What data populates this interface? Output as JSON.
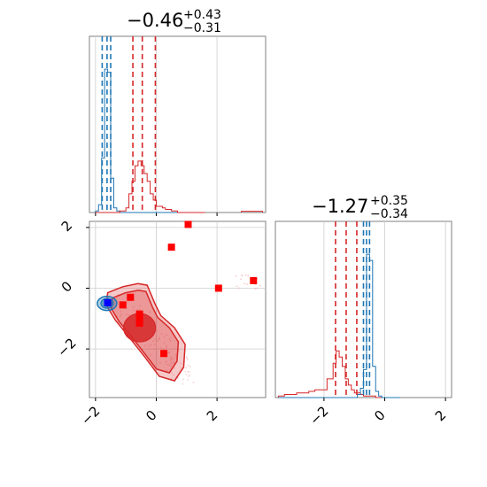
{
  "chart_data": {
    "type": "corner",
    "colors": {
      "blue": "#1f77b4",
      "red": "#d62728",
      "marker_blue": "#0000ff",
      "marker_red": "#ff0000",
      "grid": "#cccccc",
      "frame": "#808080"
    },
    "axis_range_p0": [
      -2.2,
      3.6
    ],
    "axis_range_p1": [
      -3.6,
      2.2
    ],
    "titles": [
      {
        "value": "−0.46",
        "upper": "+0.43",
        "lower": "−0.31"
      },
      {
        "value": "−1.27",
        "upper": "+0.35",
        "lower": "−0.34"
      }
    ],
    "ticks_p0": [
      -2,
      0,
      2
    ],
    "ticks_p0_labels": [
      "−2",
      "0",
      "2"
    ],
    "ticks_p1": [
      -2,
      0,
      2
    ],
    "ticks_p1_labels": [
      "−2",
      "0",
      "2"
    ],
    "histogram_p0": {
      "bin_edges": [
        -2.0,
        -1.9,
        -1.8,
        -1.7,
        -1.6,
        -1.5,
        -1.4,
        -1.3,
        -1.2,
        -1.1,
        -1.0,
        -0.9,
        -0.8,
        -0.7,
        -0.6,
        -0.5,
        -0.4,
        -0.3,
        -0.2,
        -0.1,
        0.0,
        0.1,
        0.2,
        0.3,
        0.4,
        0.5,
        0.6,
        0.7,
        0.8,
        0.9,
        1.0,
        1.1,
        1.2,
        1.3,
        1.4,
        1.5,
        1.6
      ],
      "blue": [
        0.01,
        0.05,
        0.35,
        0.92,
        0.9,
        0.22,
        0.03,
        0.01,
        0,
        0,
        0,
        0,
        0,
        0,
        0,
        0,
        0,
        0,
        0,
        0,
        0,
        0,
        0,
        0,
        0,
        0,
        0,
        0,
        0,
        0,
        0,
        0,
        0,
        0,
        0,
        0
      ],
      "red": [
        0,
        0,
        0,
        0,
        0,
        0,
        0,
        0,
        0.01,
        0.01,
        0.03,
        0.12,
        0.2,
        0.3,
        0.33,
        0.3,
        0.25,
        0.2,
        0.12,
        0.08,
        0.04,
        0.04,
        0.03,
        0.02,
        0.02,
        0.01,
        0.01,
        0,
        0,
        0,
        0,
        0,
        0,
        0,
        0,
        0
      ],
      "blue_quantiles": [
        -1.78,
        -1.62,
        -1.5
      ],
      "red_quantiles": [
        -0.77,
        -0.46,
        -0.03
      ],
      "extra_red_tail": [
        [
          2.8,
          3.5,
          0.008
        ]
      ]
    },
    "histogram_p1": {
      "bin_edges": [
        -3.5,
        -3.3,
        -3.1,
        -2.9,
        -2.7,
        -2.5,
        -2.3,
        -2.1,
        -1.9,
        -1.7,
        -1.6,
        -1.5,
        -1.4,
        -1.3,
        -1.2,
        -1.1,
        -1.0,
        -0.9,
        -0.8,
        -0.7,
        -0.6,
        -0.5,
        -0.4,
        -0.3,
        -0.2,
        -0.1,
        0.1,
        0.3,
        0.5
      ],
      "red": [
        0.01,
        0.02,
        0.02,
        0.03,
        0.03,
        0.04,
        0.05,
        0.05,
        0.12,
        0.22,
        0.3,
        0.26,
        0.2,
        0.12,
        0.08,
        0.05,
        0.03,
        0.03,
        0.02,
        0.01,
        0.01,
        0.01,
        0.01,
        0.0,
        0.0,
        0.0,
        0.0,
        0.0
      ],
      "blue": [
        0,
        0,
        0,
        0,
        0,
        0,
        0,
        0,
        0,
        0,
        0,
        0,
        0,
        0,
        0,
        0,
        0,
        0.02,
        0.06,
        0.18,
        0.92,
        0.88,
        0.2,
        0.04,
        0.01,
        0,
        0,
        0
      ],
      "red_quantiles": [
        -1.62,
        -1.27,
        -0.92
      ],
      "blue_quantiles": [
        -0.7,
        -0.6,
        -0.5
      ]
    },
    "blue_contour_center": [
      -1.62,
      -0.5
    ],
    "red_contour_path": [
      [
        -1.6,
        -0.15
      ],
      [
        -1.1,
        0.05
      ],
      [
        -0.6,
        0.15
      ],
      [
        -0.3,
        0.1
      ],
      [
        -0.05,
        -0.5
      ],
      [
        0.15,
        -0.9
      ],
      [
        0.6,
        -1.3
      ],
      [
        0.95,
        -1.85
      ],
      [
        0.9,
        -2.6
      ],
      [
        0.6,
        -3.05
      ],
      [
        0.1,
        -2.9
      ],
      [
        -0.35,
        -2.3
      ],
      [
        -0.9,
        -1.6
      ],
      [
        -1.35,
        -1.05
      ],
      [
        -1.65,
        -0.55
      ]
    ],
    "red_core_center": [
      -0.55,
      -1.3
    ],
    "markers_red": [
      [
        -1.1,
        -0.55
      ],
      [
        -0.85,
        -0.3
      ],
      [
        -0.55,
        -0.85
      ],
      [
        -0.55,
        -1.0
      ],
      [
        -0.55,
        -1.15
      ],
      [
        0.25,
        -2.15
      ],
      [
        0.5,
        1.35
      ],
      [
        1.05,
        2.1
      ],
      [
        2.05,
        0.0
      ],
      [
        3.2,
        0.25
      ]
    ],
    "markers_blue": [
      [
        -1.6,
        -0.48
      ]
    ]
  }
}
